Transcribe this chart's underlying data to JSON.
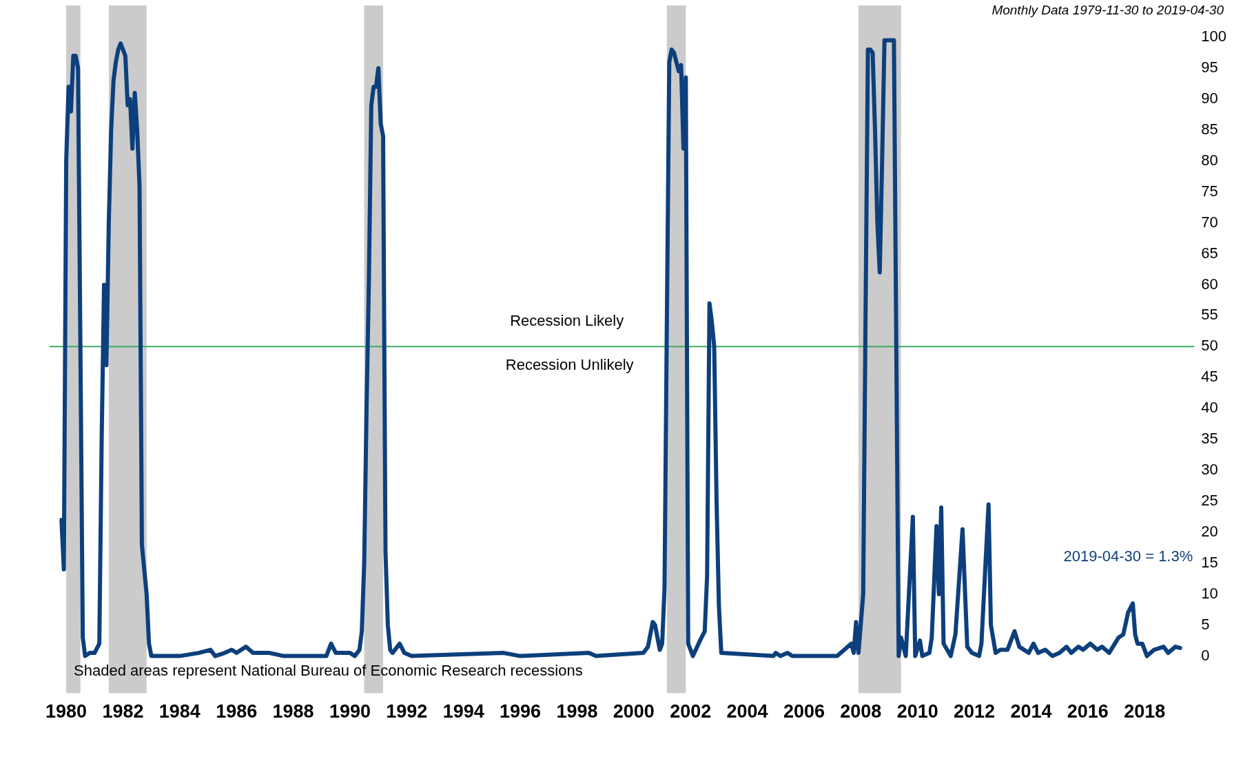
{
  "chart_data": {
    "type": "line",
    "subtitle": "Monthly Data 1979-11-30 to 2019-04-30",
    "annotations": [
      "Recession Likely",
      "Recession Unlikely",
      "Shaded areas represent National Bureau of Economic Research recessions",
      "2019-04-30 = 1.3%"
    ],
    "x": [
      "1979-11",
      "1979-12",
      "1980-01",
      "1980-02",
      "1980-03",
      "1980-04",
      "1980-05",
      "1980-06",
      "1980-07",
      "1980-08",
      "1980-09",
      "1980-11",
      "1981-01",
      "1981-03",
      "1981-04",
      "1981-05",
      "1981-06",
      "1981-07",
      "1981-08",
      "1981-09",
      "1981-10",
      "1981-11",
      "1981-12",
      "1982-01",
      "1982-02",
      "1982-03",
      "1982-04",
      "1982-05",
      "1982-06",
      "1982-07",
      "1982-08",
      "1982-09",
      "1982-10",
      "1982-11",
      "1982-12",
      "1983-01",
      "1984-01",
      "1984-09",
      "1985-02",
      "1985-04",
      "1985-08",
      "1985-11",
      "1986-01",
      "1986-05",
      "1986-08",
      "1987-03",
      "1987-09",
      "1989-03",
      "1989-05",
      "1989-07",
      "1989-10",
      "1990-01",
      "1990-03",
      "1990-05",
      "1990-06",
      "1990-07",
      "1990-08",
      "1990-09",
      "1990-10",
      "1990-11",
      "1990-12",
      "1991-01",
      "1991-02",
      "1991-03",
      "1991-04",
      "1991-05",
      "1991-06",
      "1991-07",
      "1991-10",
      "1991-12",
      "1992-03",
      "1995-06",
      "1996-01",
      "1998-06",
      "1998-09",
      "2000-05",
      "2000-07",
      "2000-09",
      "2000-10",
      "2000-12",
      "2001-01",
      "2001-02",
      "2001-03",
      "2001-04",
      "2001-05",
      "2001-06",
      "2001-07",
      "2001-08",
      "2001-09",
      "2001-10",
      "2001-11",
      "2001-12",
      "2002-02",
      "2002-05",
      "2002-07",
      "2002-08",
      "2002-09",
      "2002-10",
      "2002-11",
      "2002-12",
      "2003-01",
      "2003-02",
      "2004-12",
      "2005-01",
      "2005-03",
      "2005-06",
      "2005-08",
      "2007-03",
      "2007-06",
      "2007-09",
      "2007-10",
      "2007-11",
      "2007-12",
      "2008-02",
      "2008-03",
      "2008-04",
      "2008-05",
      "2008-06",
      "2008-07",
      "2008-08",
      "2008-09",
      "2008-10",
      "2008-11",
      "2009-03",
      "2009-04",
      "2009-05",
      "2009-06",
      "2009-08",
      "2009-11",
      "2009-12",
      "2010-02",
      "2010-03",
      "2010-06",
      "2010-07",
      "2010-09",
      "2010-10",
      "2010-11",
      "2010-12",
      "2011-03",
      "2011-05",
      "2011-08",
      "2011-10",
      "2011-12",
      "2012-03",
      "2012-04",
      "2012-07",
      "2012-08",
      "2012-10",
      "2012-12",
      "2013-03",
      "2013-06",
      "2013-08",
      "2013-12",
      "2014-02",
      "2014-04",
      "2014-07",
      "2014-10",
      "2015-01",
      "2015-04",
      "2015-06",
      "2015-09",
      "2015-11",
      "2016-02",
      "2016-05",
      "2016-07",
      "2016-10",
      "2017-02",
      "2017-04",
      "2017-06",
      "2017-08",
      "2017-09",
      "2017-10",
      "2017-12",
      "2018-02",
      "2018-05",
      "2018-09",
      "2018-11",
      "2019-02",
      "2019-04"
    ],
    "values": [
      22,
      14,
      80,
      92,
      88,
      97,
      97,
      95,
      50,
      3,
      0,
      0.5,
      0.5,
      2,
      35,
      60,
      47,
      70,
      85,
      93,
      96,
      98,
      99,
      98,
      97,
      89,
      90,
      82,
      91,
      85,
      76,
      18,
      14,
      10,
      2,
      0,
      0,
      0.5,
      1,
      0,
      0.5,
      1,
      0.5,
      1.5,
      0.5,
      0.5,
      0,
      0,
      2,
      0.5,
      0.5,
      0.5,
      0,
      1,
      4,
      15,
      40,
      61,
      89,
      92,
      92,
      95,
      86,
      84,
      17,
      5,
      1,
      0.5,
      2,
      0.5,
      0,
      0.5,
      0,
      0.5,
      0,
      0.5,
      1.5,
      5.5,
      5,
      1,
      2,
      11,
      55,
      96,
      98,
      97.5,
      96,
      94.5,
      95.5,
      82,
      93.5,
      2,
      0,
      2.5,
      4,
      13,
      57,
      54,
      50,
      25,
      8,
      0.5,
      0,
      0.5,
      0,
      0.5,
      0,
      0,
      1,
      2,
      0.5,
      5.5,
      0.5,
      10,
      55,
      98,
      98,
      97.5,
      85,
      70,
      62,
      80,
      99.5,
      99.5,
      50,
      0,
      3,
      0,
      22.5,
      0,
      2.5,
      0,
      0.5,
      3,
      21,
      10,
      24,
      2,
      0,
      3.5,
      20.5,
      1.5,
      0.5,
      0,
      2,
      24.5,
      5,
      0.5,
      1,
      1,
      4,
      1.5,
      0.5,
      2,
      0.5,
      1,
      0,
      0.5,
      1.5,
      0.5,
      1.5,
      1,
      2,
      1,
      1.5,
      0.5,
      3,
      3.5,
      7,
      8.5,
      3.5,
      2,
      2,
      0,
      1,
      1.5,
      0.5,
      1.5,
      1.3
    ],
    "color": "#0d3f7c",
    "xlim": [
      "1979-06",
      "2019-10"
    ],
    "xticks": [
      "1980",
      "1982",
      "1984",
      "1986",
      "1988",
      "1990",
      "1992",
      "1994",
      "1996",
      "1998",
      "2000",
      "2002",
      "2004",
      "2006",
      "2008",
      "2010",
      "2012",
      "2014",
      "2016",
      "2018"
    ],
    "ylim": [
      0,
      100
    ],
    "yticks": [
      0,
      5,
      10,
      15,
      20,
      25,
      30,
      35,
      40,
      45,
      50,
      55,
      60,
      65,
      70,
      75,
      80,
      85,
      90,
      95,
      100
    ],
    "grid": false,
    "legend": false,
    "line_style": "solid",
    "ref_lines": [
      {
        "axis": "y",
        "value": 50,
        "color": "#3aae63"
      }
    ],
    "bands": [
      {
        "axis": "x",
        "from": "1980-01",
        "to": "1980-07",
        "color": "#cbcbcb"
      },
      {
        "axis": "x",
        "from": "1981-07",
        "to": "1982-11",
        "color": "#cbcbcb"
      },
      {
        "axis": "x",
        "from": "1990-07",
        "to": "1991-03",
        "color": "#cbcbcb"
      },
      {
        "axis": "x",
        "from": "2001-03",
        "to": "2001-11",
        "color": "#cbcbcb"
      },
      {
        "axis": "x",
        "from": "2007-12",
        "to": "2009-06",
        "color": "#cbcbcb"
      }
    ]
  }
}
